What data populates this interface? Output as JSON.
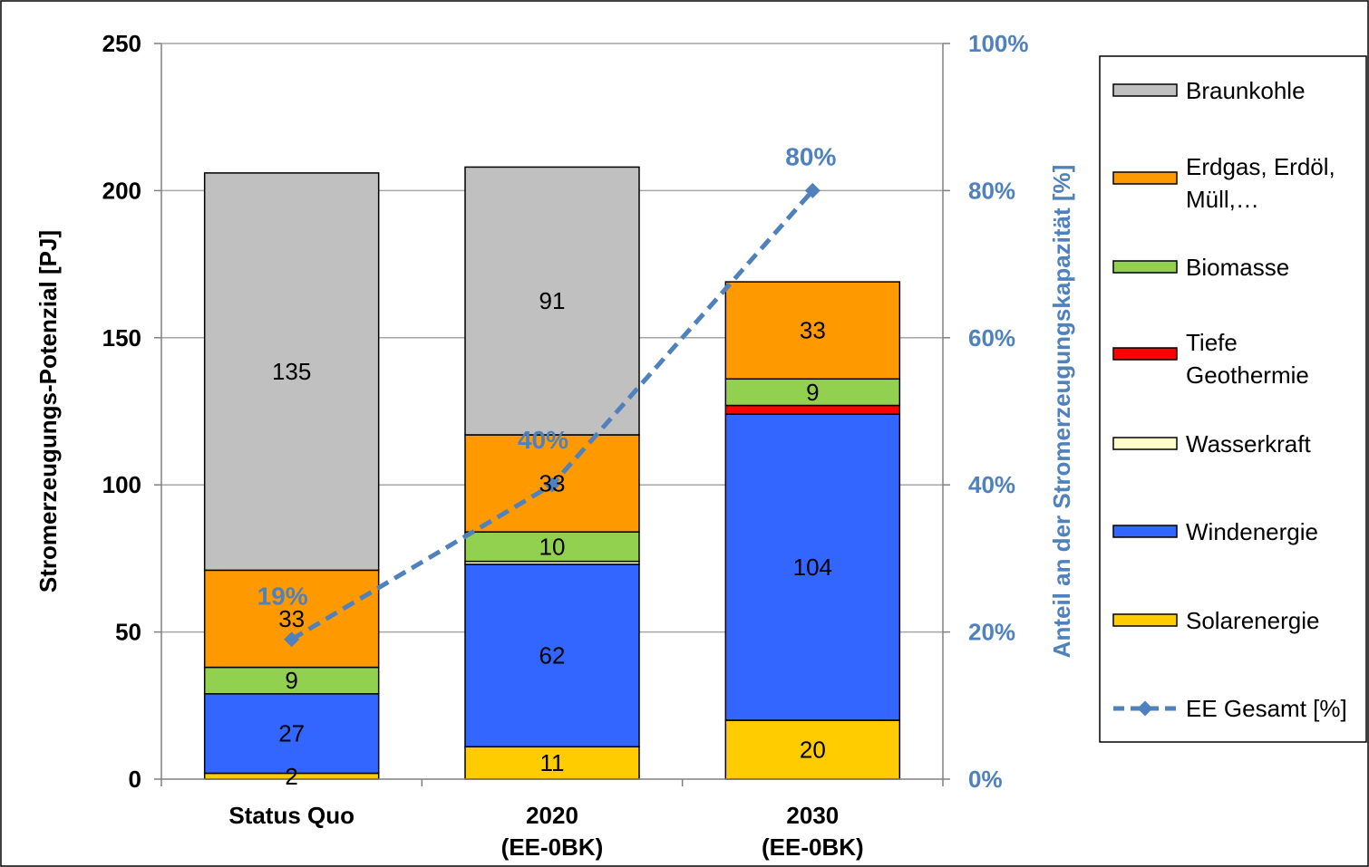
{
  "chart_data": {
    "type": "bar",
    "stacked": true,
    "categories": [
      {
        "line1": "Status Quo",
        "line2": ""
      },
      {
        "line1": "2020",
        "line2": "(EE-0BK)"
      },
      {
        "line1": "2030",
        "line2": "(EE-0BK)"
      }
    ],
    "ylabel": "Stromerzeugungs-Potenzial [PJ]",
    "y2label": "Anteil an der Stromerzeugungskapazität [%]",
    "ylim": [
      0,
      250
    ],
    "yticks": [
      0,
      50,
      100,
      150,
      200,
      250
    ],
    "y2lim": [
      0,
      100
    ],
    "y2ticks": [
      "0%",
      "20%",
      "40%",
      "60%",
      "80%",
      "100%"
    ],
    "grid": true,
    "legend_position": "right",
    "series": [
      {
        "name": "Solarenergie",
        "color": "#FFCC00",
        "values": [
          2,
          11,
          20
        ],
        "labels": [
          "2",
          "11",
          "20"
        ]
      },
      {
        "name": "Windenergie",
        "color": "#3366FF",
        "values": [
          27,
          62,
          104
        ],
        "labels": [
          "27",
          "62",
          "104"
        ]
      },
      {
        "name": "Wasserkraft",
        "color": "#FFFFCC",
        "values": [
          0,
          1,
          0
        ],
        "labels": [
          "",
          "",
          ""
        ]
      },
      {
        "name": "Tiefe Geothermie",
        "color": "#FF0000",
        "values": [
          0,
          0,
          3
        ],
        "labels": [
          "",
          "",
          ""
        ]
      },
      {
        "name": "Biomasse",
        "color": "#92D050",
        "values": [
          9,
          10,
          9
        ],
        "labels": [
          "9",
          "10",
          "9"
        ]
      },
      {
        "name": "Erdgas, Erdöl, Müll,…",
        "color": "#FF9900",
        "values": [
          33,
          33,
          33
        ],
        "labels": [
          "33",
          "33",
          "33"
        ]
      },
      {
        "name": "Braunkohle",
        "color": "#C0C0C0",
        "values": [
          135,
          91,
          0
        ],
        "labels": [
          "135",
          "91",
          ""
        ]
      }
    ],
    "line_series": {
      "name": "EE Gesamt [%]",
      "color": "#4F81BD",
      "values": [
        19,
        40,
        80
      ],
      "labels": [
        "19%",
        "40%",
        "80%"
      ]
    },
    "legend": [
      {
        "label": "Braunkohle",
        "kind": "box",
        "color": "#C0C0C0"
      },
      {
        "label": "Erdgas, Erdöl,",
        "label2": "Müll,…",
        "kind": "box",
        "color": "#FF9900"
      },
      {
        "label": "Biomasse",
        "kind": "box",
        "color": "#92D050"
      },
      {
        "label": "Tiefe",
        "label2": "Geothermie",
        "kind": "box",
        "color": "#FF0000"
      },
      {
        "label": "Wasserkraft",
        "kind": "box",
        "color": "#FFFFCC"
      },
      {
        "label": "Windenergie",
        "kind": "box",
        "color": "#3366FF"
      },
      {
        "label": "Solarenergie",
        "kind": "box",
        "color": "#FFCC00"
      },
      {
        "label": "EE Gesamt [%]",
        "kind": "line",
        "color": "#4F81BD"
      }
    ]
  }
}
